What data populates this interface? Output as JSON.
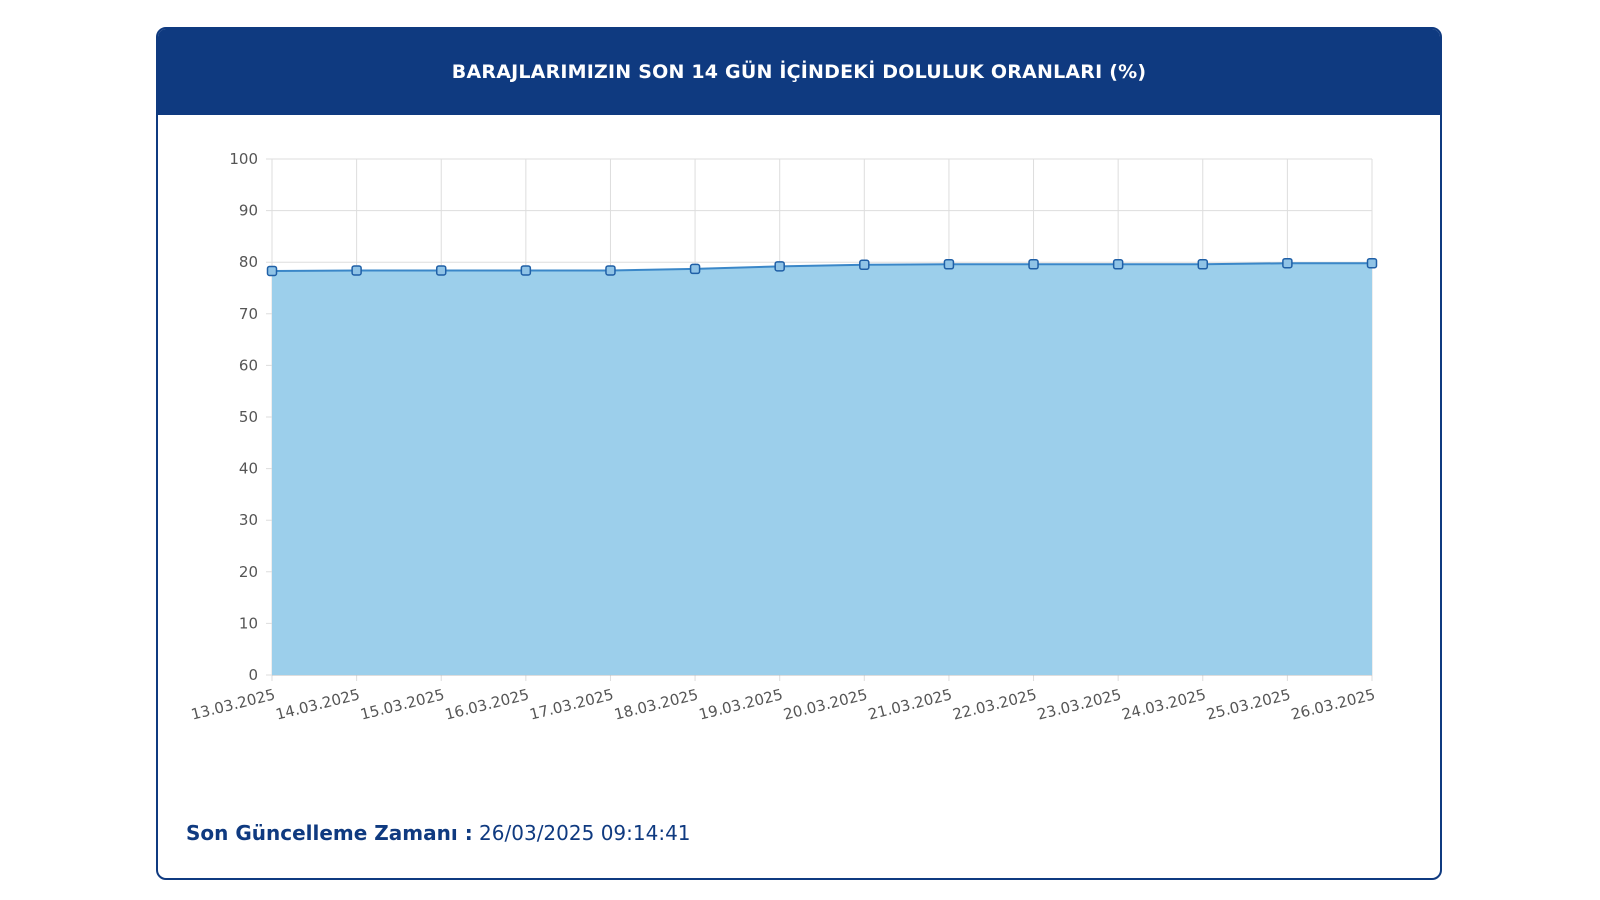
{
  "header": {
    "title": "BARAJLARIMIZIN SON 14 GÜN İÇİNDEKİ DOLULUK ORANLARI (%)"
  },
  "footer": {
    "label": "Son Güncelleme Zamanı :",
    "value": " 26/03/2025 09:14:41"
  },
  "colors": {
    "header_bg": "#0f3a80",
    "area_fill": "#9ccfeb",
    "line": "#3a87c8",
    "grid": "#dddddd"
  },
  "chart_data": {
    "type": "area",
    "categories": [
      "13.03.2025",
      "14.03.2025",
      "15.03.2025",
      "16.03.2025",
      "17.03.2025",
      "18.03.2025",
      "19.03.2025",
      "20.03.2025",
      "21.03.2025",
      "22.03.2025",
      "23.03.2025",
      "24.03.2025",
      "25.03.2025",
      "26.03.2025"
    ],
    "values": [
      78.3,
      78.4,
      78.4,
      78.4,
      78.4,
      78.7,
      79.2,
      79.5,
      79.6,
      79.6,
      79.6,
      79.6,
      79.8,
      79.8
    ],
    "ylim": [
      0,
      100
    ],
    "yticks": [
      0,
      10,
      20,
      30,
      40,
      50,
      60,
      70,
      80,
      90,
      100
    ],
    "grid": true,
    "legend": "none"
  }
}
